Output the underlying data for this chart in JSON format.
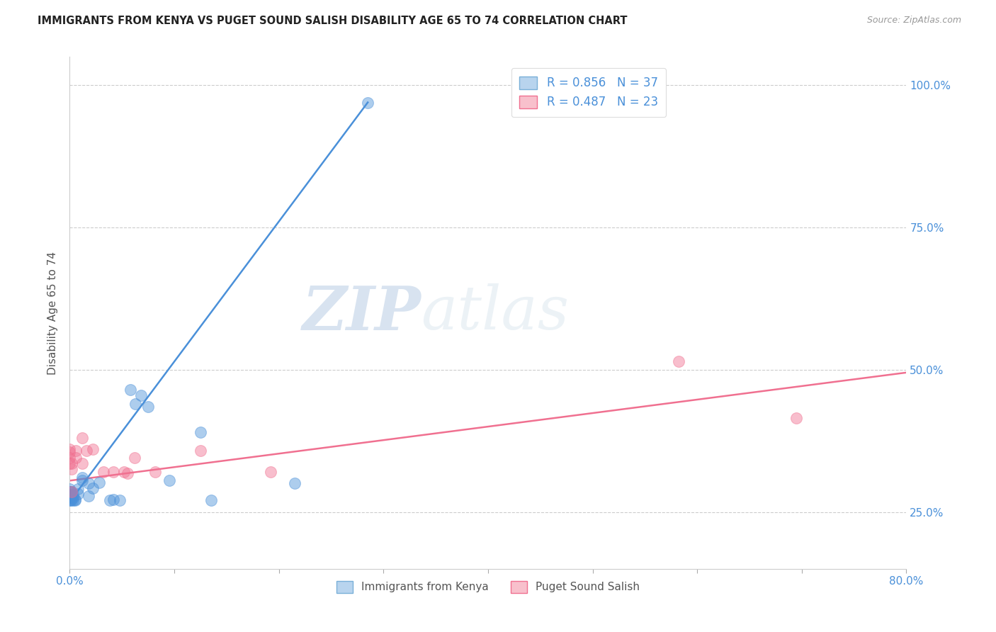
{
  "title": "IMMIGRANTS FROM KENYA VS PUGET SOUND SALISH DISABILITY AGE 65 TO 74 CORRELATION CHART",
  "source": "Source: ZipAtlas.com",
  "ylabel": "Disability Age 65 to 74",
  "xlim": [
    0.0,
    0.8
  ],
  "ylim": [
    0.15,
    1.05
  ],
  "x_ticks": [
    0.0,
    0.1,
    0.2,
    0.3,
    0.4,
    0.5,
    0.6,
    0.7,
    0.8
  ],
  "x_tick_labels": [
    "0.0%",
    "",
    "",
    "",
    "",
    "",
    "",
    "",
    "80.0%"
  ],
  "y_ticks_right": [
    0.25,
    0.5,
    0.75,
    1.0
  ],
  "y_tick_labels_right": [
    "25.0%",
    "50.0%",
    "75.0%",
    "100.0%"
  ],
  "watermark_zip": "ZIP",
  "watermark_atlas": "atlas",
  "blue_color": "#4a90d9",
  "pink_color": "#f07090",
  "kenya_points": [
    [
      0.0,
      0.27
    ],
    [
      0.0,
      0.275
    ],
    [
      0.0,
      0.28
    ],
    [
      0.0,
      0.285
    ],
    [
      0.0,
      0.29
    ],
    [
      0.001,
      0.27
    ],
    [
      0.001,
      0.275
    ],
    [
      0.001,
      0.28
    ],
    [
      0.001,
      0.285
    ],
    [
      0.002,
      0.272
    ],
    [
      0.002,
      0.278
    ],
    [
      0.002,
      0.285
    ],
    [
      0.003,
      0.27
    ],
    [
      0.003,
      0.275
    ],
    [
      0.003,
      0.28
    ],
    [
      0.005,
      0.27
    ],
    [
      0.005,
      0.272
    ],
    [
      0.008,
      0.282
    ],
    [
      0.008,
      0.29
    ],
    [
      0.012,
      0.305
    ],
    [
      0.012,
      0.31
    ],
    [
      0.018,
      0.3
    ],
    [
      0.018,
      0.278
    ],
    [
      0.022,
      0.292
    ],
    [
      0.028,
      0.302
    ],
    [
      0.038,
      0.27
    ],
    [
      0.042,
      0.272
    ],
    [
      0.048,
      0.27
    ],
    [
      0.058,
      0.465
    ],
    [
      0.063,
      0.44
    ],
    [
      0.068,
      0.455
    ],
    [
      0.075,
      0.435
    ],
    [
      0.095,
      0.305
    ],
    [
      0.125,
      0.39
    ],
    [
      0.135,
      0.27
    ],
    [
      0.215,
      0.3
    ],
    [
      0.285,
      0.97
    ]
  ],
  "salish_points": [
    [
      0.0,
      0.335
    ],
    [
      0.0,
      0.345
    ],
    [
      0.0,
      0.355
    ],
    [
      0.0,
      0.36
    ],
    [
      0.002,
      0.325
    ],
    [
      0.002,
      0.335
    ],
    [
      0.002,
      0.285
    ],
    [
      0.006,
      0.345
    ],
    [
      0.006,
      0.358
    ],
    [
      0.012,
      0.38
    ],
    [
      0.012,
      0.335
    ],
    [
      0.016,
      0.358
    ],
    [
      0.022,
      0.36
    ],
    [
      0.032,
      0.32
    ],
    [
      0.042,
      0.32
    ],
    [
      0.052,
      0.32
    ],
    [
      0.055,
      0.318
    ],
    [
      0.062,
      0.345
    ],
    [
      0.082,
      0.32
    ],
    [
      0.125,
      0.358
    ],
    [
      0.192,
      0.32
    ],
    [
      0.582,
      0.515
    ],
    [
      0.695,
      0.415
    ]
  ],
  "kenya_line_x": [
    0.0,
    0.285
  ],
  "kenya_line_y": [
    0.268,
    0.97
  ],
  "salish_line_x": [
    0.0,
    0.8
  ],
  "salish_line_y": [
    0.305,
    0.495
  ],
  "background_color": "#ffffff",
  "grid_color": "#cccccc",
  "legend_blue_label": "R = 0.856   N = 37",
  "legend_pink_label": "R = 0.487   N = 23",
  "bottom_legend_blue": "Immigrants from Kenya",
  "bottom_legend_pink": "Puget Sound Salish"
}
